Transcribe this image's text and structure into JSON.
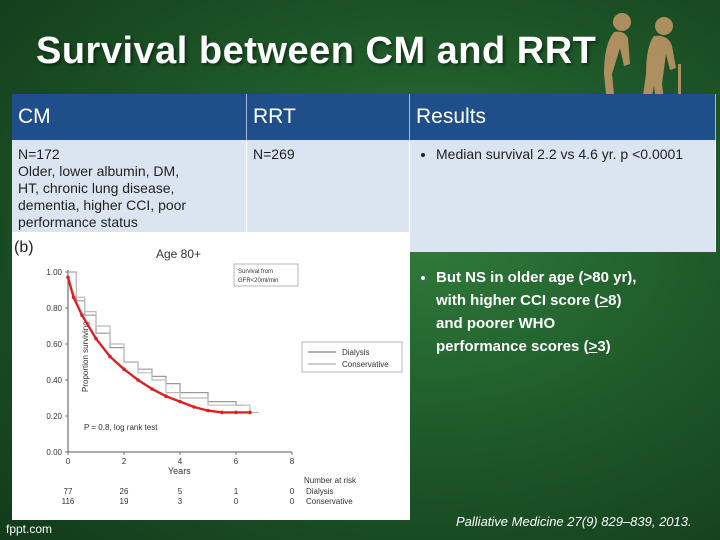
{
  "slide": {
    "title": "Survival between CM and RRT"
  },
  "table": {
    "headers": [
      "CM",
      "RRT",
      "Results"
    ],
    "cm_lines": [
      "N=172",
      "Older, lower albumin, DM,",
      "HT, chronic lung disease,",
      "dementia, higher CCI, poor",
      "performance status"
    ],
    "rrt_value": "N=269",
    "results_bullet": "Median survival 2.2 vs 4.6 yr. p <0.0001"
  },
  "bullets": {
    "line1_prefix": "But NS in older age (>80 yr),",
    "line2": "with higher CCI score (",
    "line2_sym": ">",
    "line2_tail": "8)",
    "line3": "and poorer WHO",
    "line4": "performance scores (",
    "line4_sym": ">",
    "line4_tail": "3)"
  },
  "reference": {
    "journal": "Palliative Medicine",
    "citation": " 27(9) 829–839, 2013."
  },
  "footer": {
    "brand": "fppt.com"
  },
  "figure": {
    "panel_label": "(b)",
    "panel_title": "Age 80+",
    "inset_text_1": "Survival from",
    "inset_text_2": "GFR<20ml/min",
    "stat_text": "P = 0.8, log rank test",
    "risk_header": "Number at risk",
    "risk_rows": [
      {
        "name": "Dialysis",
        "values": [
          "77",
          "26",
          "5",
          "1",
          "0"
        ]
      },
      {
        "name": "Conservative",
        "values": [
          "116",
          "19",
          "3",
          "0",
          "0"
        ]
      }
    ]
  },
  "chart_data": {
    "type": "line",
    "title": "Age 80+",
    "xlabel": "Years",
    "ylabel": "Proportion surviving",
    "xlim": [
      0,
      8
    ],
    "ylim": [
      0,
      1.0
    ],
    "x_ticks": [
      "0",
      "2",
      "4",
      "6",
      "8"
    ],
    "y_ticks": [
      "0.00",
      "0.20",
      "0.40",
      "0.60",
      "0.80",
      "1.00"
    ],
    "legend_position": "right-middle",
    "series": [
      {
        "name": "Dialysis",
        "color": "#999999",
        "x": [
          0,
          0.3,
          0.6,
          1.0,
          1.5,
          2.0,
          2.5,
          3.0,
          3.5,
          4.0,
          5.0,
          6.0
        ],
        "y": [
          1.0,
          0.84,
          0.76,
          0.66,
          0.58,
          0.5,
          0.46,
          0.42,
          0.38,
          0.33,
          0.28,
          0.26
        ]
      },
      {
        "name": "Conservative",
        "color": "#bbbbbb",
        "x": [
          0,
          0.3,
          0.6,
          1.0,
          1.5,
          2.0,
          2.5,
          3.0,
          3.5,
          4.0,
          5.0,
          6.5
        ],
        "y": [
          1.0,
          0.86,
          0.78,
          0.7,
          0.6,
          0.5,
          0.44,
          0.4,
          0.33,
          0.3,
          0.26,
          0.22
        ]
      },
      {
        "name": "",
        "color": "#e02020",
        "x": [
          0,
          0.2,
          0.5,
          1.0,
          1.5,
          2.0,
          2.5,
          3.0,
          3.5,
          4.0,
          4.5,
          5.0,
          5.5,
          6.0,
          6.5
        ],
        "y": [
          0.97,
          0.86,
          0.76,
          0.63,
          0.53,
          0.46,
          0.4,
          0.35,
          0.31,
          0.28,
          0.25,
          0.23,
          0.22,
          0.22,
          0.22
        ]
      }
    ]
  }
}
